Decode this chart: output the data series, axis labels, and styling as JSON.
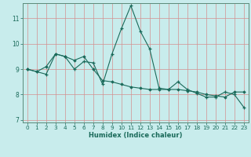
{
  "xlabel": "Humidex (Indice chaleur)",
  "background_color": "#c8ecec",
  "grid_color_major": "#e8b8b8",
  "grid_color_minor": "#e8b8b8",
  "line_color": "#1a6a5a",
  "x_values": [
    0,
    1,
    2,
    3,
    4,
    5,
    6,
    7,
    8,
    9,
    10,
    11,
    12,
    13,
    14,
    15,
    16,
    17,
    18,
    19,
    20,
    21,
    22,
    23
  ],
  "series1_y": [
    9.0,
    8.9,
    8.8,
    9.6,
    9.5,
    9.0,
    9.3,
    9.25,
    8.4,
    9.6,
    10.6,
    11.5,
    10.5,
    9.8,
    8.25,
    8.2,
    8.5,
    8.2,
    8.05,
    7.9,
    7.9,
    8.1,
    8.0,
    7.5
  ],
  "series2_y": [
    9.0,
    8.9,
    9.1,
    9.6,
    9.5,
    9.35,
    9.5,
    9.0,
    8.55,
    8.5,
    8.4,
    8.3,
    8.25,
    8.2,
    8.2,
    8.2,
    8.2,
    8.15,
    8.1,
    8.0,
    7.95,
    7.9,
    8.1,
    8.1
  ],
  "ylim": [
    6.9,
    11.6
  ],
  "xlim": [
    -0.5,
    23.5
  ],
  "yticks": [
    7,
    8,
    9,
    10,
    11
  ],
  "xticks": [
    0,
    1,
    2,
    3,
    4,
    5,
    6,
    7,
    8,
    9,
    10,
    11,
    12,
    13,
    14,
    15,
    16,
    17,
    18,
    19,
    20,
    21,
    22,
    23
  ],
  "tick_color": "#1a6a5a",
  "spine_color": "#5a8a7a"
}
